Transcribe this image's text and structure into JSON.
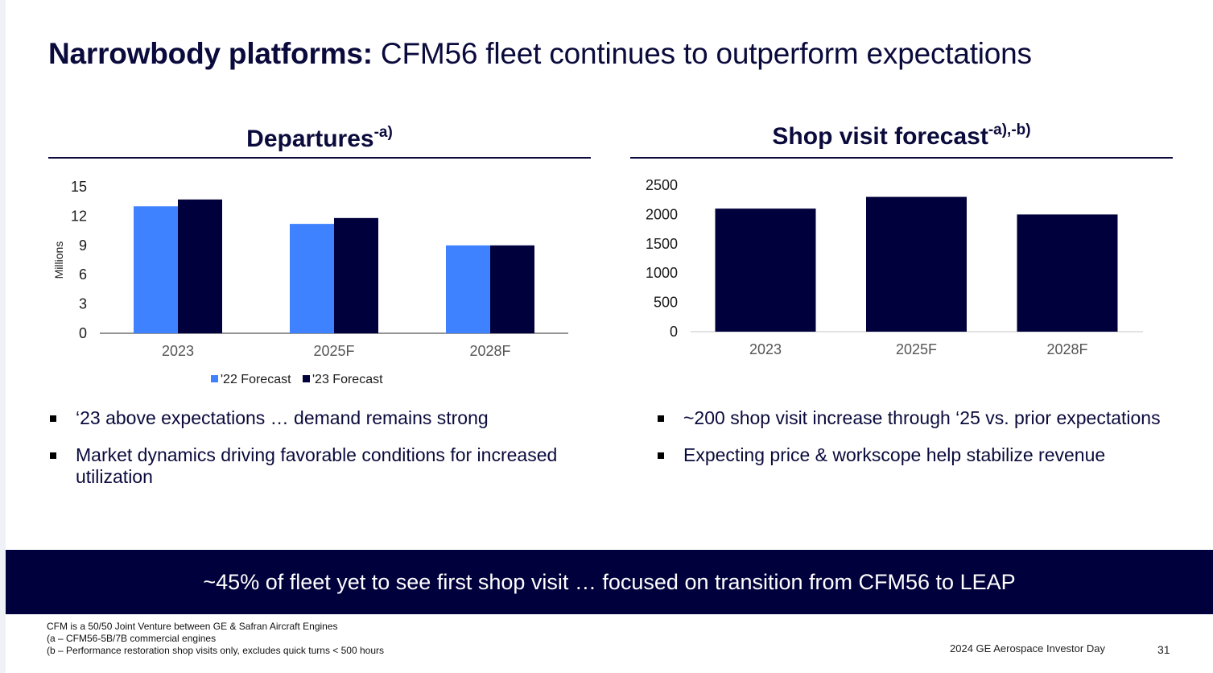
{
  "slide": {
    "title_bold": "Narrowbody platforms:",
    "title_rest": " CFM56 fleet continues to outperform expectations",
    "left_header": "Departures",
    "left_header_sup": "-a)",
    "right_header": "Shop visit forecast",
    "right_header_sup": "-a),-b)",
    "left_bullets": [
      "‘23 above expectations … demand remains strong",
      "Market dynamics driving favorable conditions for increased utilization"
    ],
    "right_bullets": [
      "~200 shop visit increase through ‘25 vs. prior expectations",
      "Expecting price & workscope help stabilize revenue"
    ],
    "banner": "~45% of fleet yet to see first shop visit … focused on transition from CFM56 to LEAP",
    "footnotes": [
      "CFM is a 50/50 Joint Venture between GE & Safran Aircraft Engines",
      "(a – CFM56-5B/7B commercial engines",
      "(b – Performance restoration shop visits only, excludes quick turns < 500 hours"
    ],
    "event": "2024 GE Aerospace Investor Day",
    "page": "31"
  },
  "colors": {
    "navy": "#00003c",
    "blue": "#3f82ff",
    "text": "#0a0a3c"
  },
  "chart_data": [
    {
      "type": "bar",
      "title": "Departures-a)",
      "categories": [
        "2023",
        "2025F",
        "2028F"
      ],
      "series": [
        {
          "name": "'22 Forecast",
          "values": [
            13.0,
            11.2,
            9.0
          ],
          "color": "#3f82ff"
        },
        {
          "name": "'23 Forecast",
          "values": [
            13.7,
            11.8,
            9.0
          ],
          "color": "#00003c"
        }
      ],
      "ylabel": "Millions",
      "ylim": [
        0,
        15
      ],
      "yticks": [
        0,
        3,
        6,
        9,
        12,
        15
      ],
      "legend": "bottom",
      "grid": false
    },
    {
      "type": "bar",
      "title": "Shop visit forecast-a),-b)",
      "categories": [
        "2023",
        "2025F",
        "2028F"
      ],
      "series": [
        {
          "values": [
            2100,
            2300,
            2000
          ],
          "color": "#00003c"
        }
      ],
      "ylim": [
        0,
        2500
      ],
      "yticks": [
        0,
        500,
        1000,
        1500,
        2000,
        2500
      ],
      "grid": false
    }
  ]
}
